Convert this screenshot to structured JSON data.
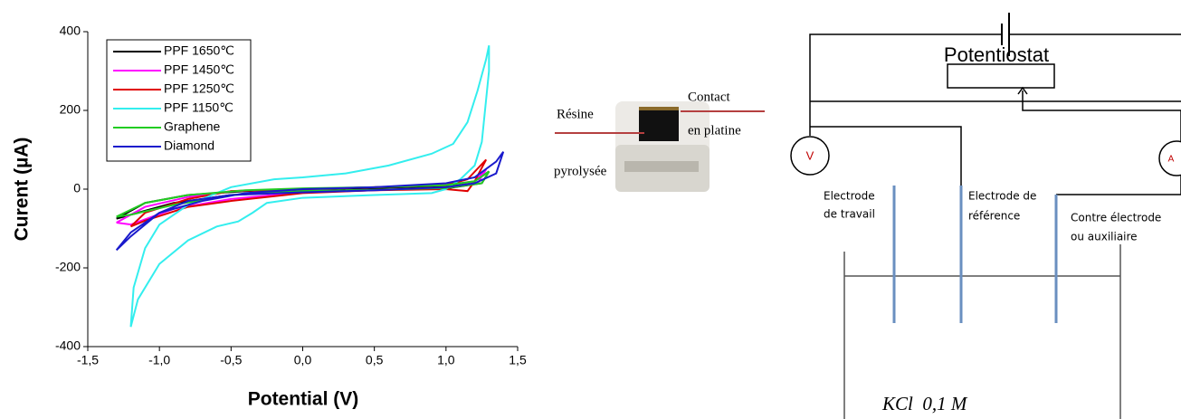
{
  "chart_data": {
    "type": "line",
    "xlabel": "Potential (V)",
    "ylabel": "Curent (µA)",
    "xlim": [
      -1.5,
      1.5
    ],
    "ylim": [
      -400,
      400
    ],
    "xticks": [
      {
        "value": -1.5,
        "label": "-1,5"
      },
      {
        "value": -1.0,
        "label": "-1,0"
      },
      {
        "value": -0.5,
        "label": "-0,5"
      },
      {
        "value": 0,
        "label": "0,0"
      },
      {
        "value": 0.5,
        "label": "0,5"
      },
      {
        "value": 1.0,
        "label": "1,0"
      },
      {
        "value": 1.5,
        "label": "1,5"
      }
    ],
    "yticks": [
      -400,
      -200,
      0,
      200,
      400
    ],
    "legend": "upper left",
    "series": [
      {
        "name": "PPF 1650℃",
        "color": "#000000",
        "x": [
          -1.3,
          -1.1,
          -0.8,
          -0.4,
          0,
          0.5,
          1.0,
          1.2,
          1.3,
          1.25,
          1.0,
          0.5,
          0,
          -0.5,
          -0.9,
          -1.2,
          -1.3
        ],
        "values": [
          -75,
          -35,
          -15,
          -5,
          0,
          3,
          8,
          20,
          45,
          15,
          2,
          -2,
          -5,
          -15,
          -35,
          -65,
          -75
        ]
      },
      {
        "name": "PPF 1450℃",
        "color": "#ff00ff",
        "x": [
          -1.3,
          -1.1,
          -0.8,
          -0.5,
          0,
          0.5,
          1.0,
          1.2,
          1.28,
          1.22,
          1.0,
          0.5,
          0,
          -0.5,
          -0.9,
          -1.2,
          -1.3
        ],
        "values": [
          -85,
          -45,
          -20,
          -5,
          0,
          5,
          10,
          20,
          50,
          15,
          3,
          -3,
          -8,
          -25,
          -50,
          -90,
          -85
        ]
      },
      {
        "name": "PPF 1250℃",
        "color": "#e00000",
        "x": [
          -1.2,
          -1.1,
          -0.8,
          -0.5,
          0,
          0.5,
          1.0,
          1.15,
          1.28,
          1.2,
          1.15,
          1.0,
          0.5,
          0,
          -0.5,
          -0.8,
          -1.1,
          -1.2
        ],
        "values": [
          -95,
          -60,
          -25,
          -5,
          0,
          5,
          10,
          25,
          75,
          20,
          -5,
          0,
          -3,
          -10,
          -30,
          -45,
          -80,
          -95
        ]
      },
      {
        "name": "PPF 1150℃",
        "color": "#33eeee",
        "x": [
          -1.2,
          -1.18,
          -1.1,
          -1.0,
          -0.8,
          -0.5,
          -0.2,
          0,
          0.3,
          0.6,
          0.9,
          1.05,
          1.15,
          1.22,
          1.28,
          1.3,
          1.3,
          1.25,
          1.2,
          1.1,
          1.0,
          0.9,
          0.5,
          0,
          -0.25,
          -0.35,
          -0.45,
          -0.6,
          -0.8,
          -1.0,
          -1.15,
          -1.2
        ],
        "values": [
          -350,
          -250,
          -150,
          -90,
          -40,
          5,
          25,
          30,
          40,
          60,
          90,
          115,
          170,
          250,
          330,
          365,
          300,
          120,
          60,
          25,
          0,
          -10,
          -15,
          -22,
          -35,
          -60,
          -82,
          -95,
          -130,
          -190,
          -280,
          -350
        ]
      },
      {
        "name": "Graphene",
        "color": "#22cc22",
        "x": [
          -1.3,
          -1.1,
          -0.8,
          -0.4,
          0,
          0.5,
          1.0,
          1.2,
          1.3,
          1.25,
          1.0,
          0.5,
          0,
          -0.5,
          -0.9,
          -1.2,
          -1.3
        ],
        "values": [
          -70,
          -35,
          -15,
          -3,
          2,
          5,
          10,
          20,
          45,
          15,
          3,
          -2,
          -5,
          -15,
          -40,
          -65,
          -70
        ]
      },
      {
        "name": "Diamond",
        "color": "#1a1acc",
        "x": [
          -1.3,
          -1.2,
          -1.0,
          -0.7,
          -0.4,
          0,
          0.5,
          1.0,
          1.2,
          1.35,
          1.4,
          1.35,
          1.2,
          1.0,
          0.5,
          0,
          -0.5,
          -0.8,
          -1.0,
          -1.2,
          -1.3
        ],
        "values": [
          -155,
          -110,
          -60,
          -30,
          -10,
          0,
          5,
          15,
          30,
          70,
          95,
          40,
          15,
          5,
          -3,
          -8,
          -15,
          -30,
          -60,
          -120,
          -155
        ]
      }
    ]
  },
  "photo": {
    "labels": [
      "Résine",
      "pyrolysée",
      "Contact",
      "en platine"
    ]
  },
  "diagram": {
    "title": "Potentiostat",
    "voltmeter": "V",
    "ammeter": "A",
    "electrodes": [
      [
        "Electrode",
        "de travail"
      ],
      [
        "Electrode de",
        "référence"
      ],
      [
        "Contre électrode",
        "ou auxiliaire"
      ]
    ],
    "solution": "KCl  0,1 M"
  }
}
